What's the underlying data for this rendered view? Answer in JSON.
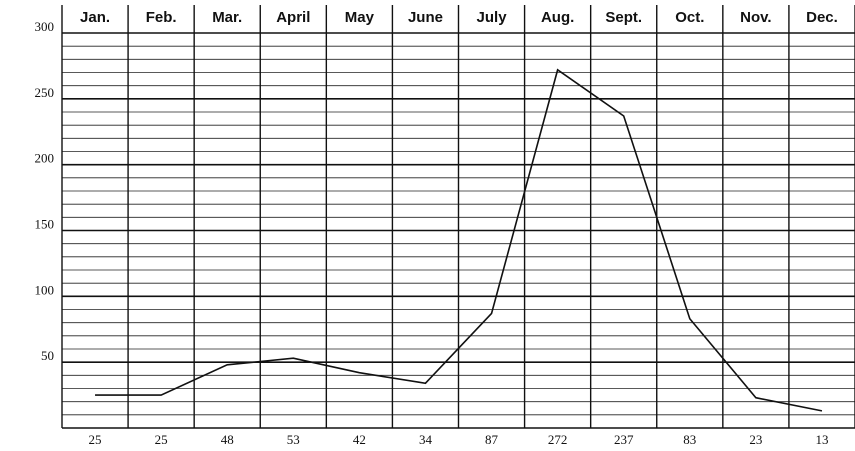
{
  "chart_data": {
    "type": "line",
    "categories": [
      "Jan.",
      "Feb.",
      "Mar.",
      "April",
      "May",
      "June",
      "July",
      "Aug.",
      "Sept.",
      "Oct.",
      "Nov.",
      "Dec."
    ],
    "values": [
      25,
      25,
      48,
      53,
      42,
      34,
      87,
      272,
      237,
      83,
      23,
      13
    ],
    "color": "#111111",
    "ylim": [
      0,
      300
    ],
    "yticks": [
      50,
      100,
      150,
      200,
      250,
      300
    ],
    "minor_yticks": [
      10,
      20,
      30,
      40,
      60,
      70,
      80,
      90,
      110,
      120,
      130,
      140,
      160,
      170,
      180,
      190,
      210,
      220,
      230,
      240,
      260,
      270,
      280,
      290
    ],
    "grid": true
  }
}
